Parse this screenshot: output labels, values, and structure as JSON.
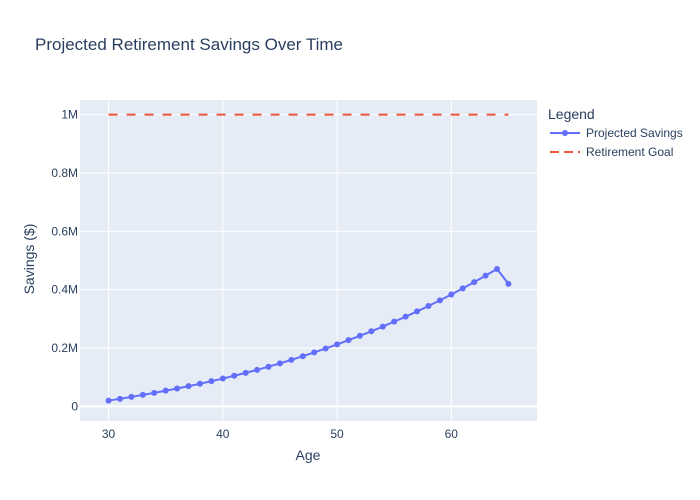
{
  "colors": {
    "plot_background": "#e5ecf6",
    "grid": "#ffffff",
    "text": "#2a3f5f",
    "projected_line": "#636efa",
    "goal_line": "#ef553b"
  },
  "chart_data": {
    "type": "line",
    "title": "Projected Retirement Savings Over Time",
    "xlabel": "Age",
    "ylabel": "Savings ($)",
    "xlim": [
      27.5,
      67.5
    ],
    "ylim": [
      -50000,
      1050000
    ],
    "x_ticks": [
      30,
      40,
      50,
      60
    ],
    "x_tick_labels": [
      "30",
      "40",
      "50",
      "60"
    ],
    "y_ticks": [
      0,
      200000,
      400000,
      600000,
      800000,
      1000000
    ],
    "y_tick_labels": [
      "0",
      "0.2M",
      "0.4M",
      "0.6M",
      "0.8M",
      "1M"
    ],
    "grid": true,
    "legend": {
      "title": "Legend",
      "placement": "right"
    },
    "x": [
      30,
      31,
      32,
      33,
      34,
      35,
      36,
      37,
      38,
      39,
      40,
      41,
      42,
      43,
      44,
      45,
      46,
      47,
      48,
      49,
      50,
      51,
      52,
      53,
      54,
      55,
      56,
      57,
      58,
      59,
      60,
      61,
      62,
      63,
      64,
      65
    ],
    "series": [
      {
        "name": "Projected Savings",
        "style": "lines+markers",
        "color": "#636efa",
        "values": [
          20000,
          26000,
          32500,
          39500,
          46500,
          54000,
          61500,
          69500,
          77500,
          86500,
          95500,
          105000,
          115000,
          125000,
          136000,
          147500,
          159500,
          172000,
          185000,
          198500,
          212500,
          227000,
          242000,
          257500,
          273500,
          290500,
          307500,
          325500,
          344000,
          363500,
          383500,
          404500,
          426000,
          448000,
          471000,
          420000
        ]
      },
      {
        "name": "Retirement Goal",
        "style": "dash",
        "color": "#ef553b",
        "values": [
          1000000,
          1000000,
          1000000,
          1000000,
          1000000,
          1000000,
          1000000,
          1000000,
          1000000,
          1000000,
          1000000,
          1000000,
          1000000,
          1000000,
          1000000,
          1000000,
          1000000,
          1000000,
          1000000,
          1000000,
          1000000,
          1000000,
          1000000,
          1000000,
          1000000,
          1000000,
          1000000,
          1000000,
          1000000,
          1000000,
          1000000,
          1000000,
          1000000,
          1000000,
          1000000,
          1000000
        ]
      }
    ]
  }
}
